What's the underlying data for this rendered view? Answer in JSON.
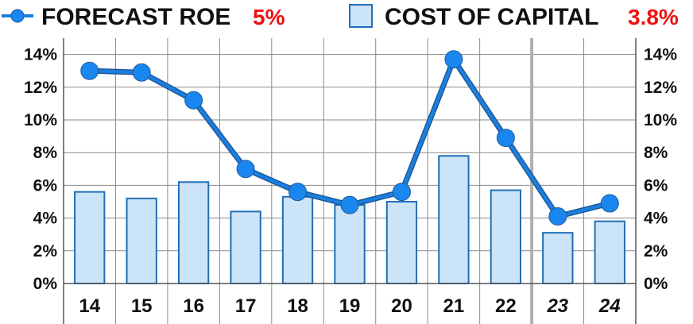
{
  "legend": {
    "roe_label": "FORECAST ROE",
    "roe_value": "5%",
    "coc_label": "COST OF CAPITAL",
    "coc_value": "3.8%"
  },
  "colors": {
    "line": "#1a7fe0",
    "marker": "#1a87f0",
    "line_outline": "#1f5a9a",
    "bar_fill": "#cce4f7",
    "bar_stroke": "#1f6fb8",
    "highlight": "#ee1111",
    "grid": "#8a8a8a",
    "forecast_divider": "#b0b0b0"
  },
  "chart_data": {
    "type": "bar+line",
    "categories": [
      "14",
      "15",
      "16",
      "17",
      "18",
      "19",
      "20",
      "21",
      "22",
      "23",
      "24"
    ],
    "italic_categories": [
      "23",
      "24"
    ],
    "series": [
      {
        "name": "COST OF CAPITAL",
        "type": "bar",
        "values": [
          5.6,
          5.2,
          6.2,
          4.4,
          5.3,
          4.8,
          5.0,
          7.8,
          5.7,
          3.1,
          3.8
        ]
      },
      {
        "name": "FORECAST ROE",
        "type": "line",
        "values": [
          13.0,
          12.9,
          11.2,
          7.0,
          5.6,
          4.8,
          5.6,
          13.7,
          8.9,
          4.1,
          4.9
        ]
      }
    ],
    "ylim": [
      0,
      15
    ],
    "yticks": [
      0,
      2,
      4,
      6,
      8,
      10,
      12,
      14
    ],
    "ytick_labels": [
      "0%",
      "2%",
      "4%",
      "6%",
      "8%",
      "10%",
      "12%",
      "14%"
    ],
    "grid": true,
    "legend_position": "top"
  }
}
